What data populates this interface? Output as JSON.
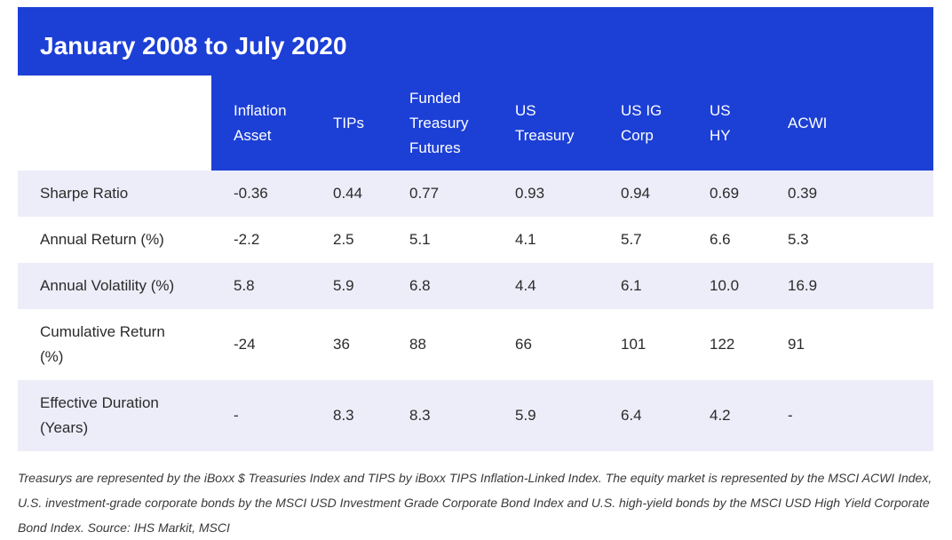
{
  "title": "January 2008 to July 2020",
  "table": {
    "columns": [
      "",
      "Inflation\nAsset",
      "TIPs",
      "Funded\nTreasury\nFutures",
      "US\nTreasury",
      "US IG\nCorp",
      "US\nHY",
      "ACWI"
    ],
    "rows": [
      {
        "label": "Sharpe Ratio",
        "values": [
          "-0.36",
          "0.44",
          "0.77",
          "0.93",
          "0.94",
          "0.69",
          "0.39"
        ]
      },
      {
        "label": "Annual Return (%)",
        "values": [
          "-2.2",
          "2.5",
          "5.1",
          "4.1",
          "5.7",
          "6.6",
          "5.3"
        ]
      },
      {
        "label": "Annual Volatility (%)",
        "values": [
          "5.8",
          "5.9",
          "6.8",
          "4.4",
          "6.1",
          "10.0",
          "16.9"
        ]
      },
      {
        "label": "Cumulative Return\n(%)",
        "values": [
          "-24",
          "36",
          "88",
          "66",
          "101",
          "122",
          "91"
        ]
      },
      {
        "label": "Effective Duration\n(Years)",
        "values": [
          "-",
          "8.3",
          "8.3",
          "5.9",
          "6.4",
          "4.2",
          "-"
        ]
      }
    ]
  },
  "footnote": "Treasurys are represented by the iBoxx $ Treasuries Index and TIPS by iBoxx TIPS Inflation-Linked Index. The equity market is represented by the MSCI ACWI Index, U.S. investment-grade corporate bonds by the MSCI USD Investment Grade Corporate Bond Index and U.S. high-yield bonds by the MSCI USD High Yield Corporate Bond Index. Source: IHS Markit, MSCI",
  "colors": {
    "header_blue": "#1c3fd6",
    "row_shade": "#ecedf8"
  }
}
